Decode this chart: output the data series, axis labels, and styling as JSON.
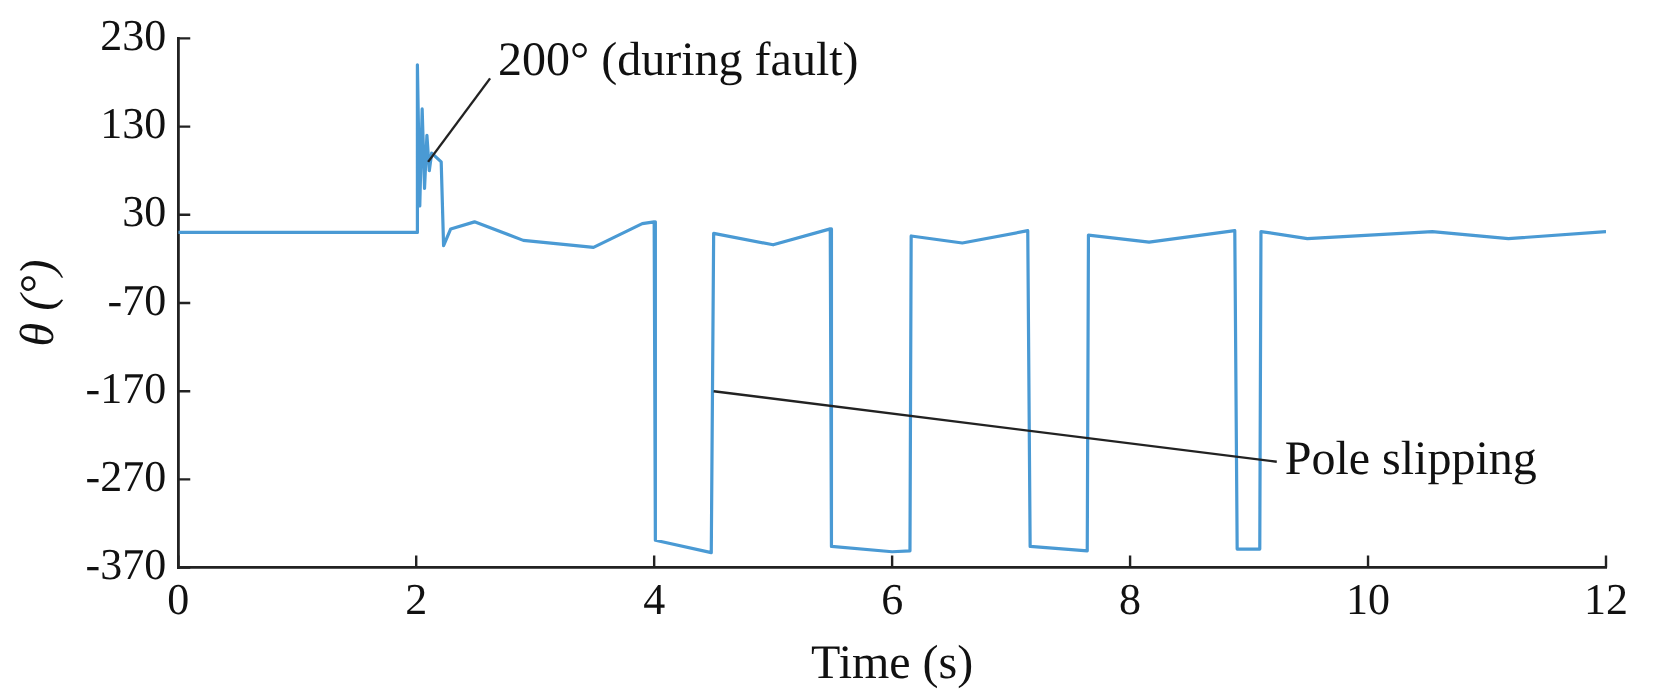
{
  "chart_data": {
    "type": "line",
    "xlabel": "Time (s)",
    "ylabel": "θ (°)",
    "x": [
      0,
      2.0,
      2.01,
      2.03,
      2.05,
      2.07,
      2.09,
      2.11,
      2.13,
      2.21,
      2.23,
      2.29,
      2.49,
      2.9,
      3.49,
      3.9,
      4.0,
      4.01,
      4.48,
      4.5,
      5.0,
      5.48,
      5.49,
      6.0,
      6.15,
      6.16,
      6.59,
      7.14,
      7.16,
      7.64,
      7.65,
      8.16,
      8.88,
      8.9,
      9.09,
      9.1,
      9.49,
      10.54,
      11.18,
      12
    ],
    "series": [
      {
        "color": "#4a9ad4",
        "values": [
          10,
          10,
          200,
          40,
          150,
          60,
          120,
          80,
          100,
          90,
          -5,
          14,
          22,
          1,
          -7,
          20,
          22,
          -339,
          -353,
          9,
          -4,
          14,
          -346,
          -352,
          -351,
          6,
          -2,
          12,
          -346,
          -351,
          7,
          -1,
          12,
          -349,
          -349,
          11,
          3,
          11,
          3,
          11
        ]
      }
    ],
    "xlim": [
      0,
      12
    ],
    "xticks": [
      0,
      2,
      4,
      6,
      8,
      10,
      12
    ],
    "ylim": [
      -370,
      230
    ],
    "yticks": [
      -370,
      -270,
      -170,
      -70,
      30,
      130,
      230
    ],
    "grid": false,
    "legend": false,
    "marker": "none",
    "line_style": "solid",
    "annotations": [
      {
        "text": "200° (during fault)",
        "x": 2.1,
        "y": 90
      },
      {
        "text": "Pole slipping",
        "x": 4.5,
        "y": -170
      }
    ]
  }
}
